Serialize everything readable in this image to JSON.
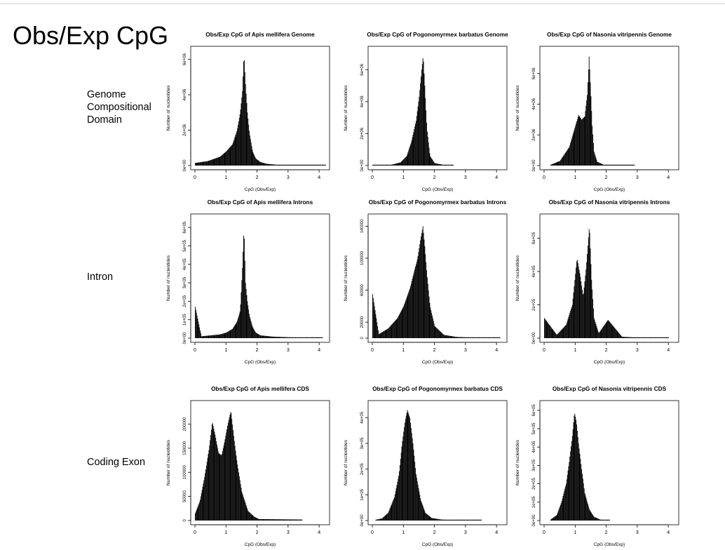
{
  "slide": {
    "title": "Obs/Exp CpG"
  },
  "rows": [
    {
      "label": "Genome\nCompositional\nDomain"
    },
    {
      "label": "Intron"
    },
    {
      "label": "Coding Exon"
    }
  ],
  "colors": {
    "bar": "#000000",
    "axis": "#000000",
    "frame": "#000000",
    "background": "#ffffff"
  },
  "chart_data": [
    {
      "type": "bar",
      "title": "Obs/Exp CpG of Apis mellifera Genome",
      "xlabel": "CpG (Obs/Exp)",
      "ylabel": "Number of nucleotides",
      "xlim": [
        0,
        4.2
      ],
      "ylim": [
        0,
        6500000
      ],
      "xticks": [
        0,
        1,
        2,
        3,
        4
      ],
      "xtick_labels": [
        "0",
        "1",
        "2",
        "3",
        "4"
      ],
      "yticks": [
        0,
        2000000,
        4000000,
        6000000
      ],
      "ytick_labels": [
        "0e+00",
        "2e+06",
        "4e+06",
        "6e+06"
      ],
      "series": [
        {
          "x": [
            0,
            0.4,
            0.8,
            1.0,
            1.2,
            1.35,
            1.45,
            1.52,
            1.57,
            1.62,
            1.68,
            1.75,
            1.85,
            1.95,
            2.1,
            2.3,
            2.6,
            3.0,
            3.5,
            4.2
          ],
          "values": [
            150000,
            250000,
            500000,
            800000,
            1200000,
            2000000,
            3000000,
            4200000,
            6300000,
            4600000,
            3000000,
            1800000,
            800000,
            400000,
            200000,
            100000,
            50000,
            30000,
            20000,
            15000
          ]
        }
      ]
    },
    {
      "type": "bar",
      "title": "Obs/Exp CpG of Pogonomyrmex barbatus Genome",
      "xlabel": "CpG (Obs/Exp)",
      "ylabel": "Number of nucleotides",
      "xlim": [
        0,
        4.2
      ],
      "ylim": [
        0,
        7200000
      ],
      "xticks": [
        0,
        1,
        2,
        3,
        4
      ],
      "xtick_labels": [
        "0",
        "1",
        "2",
        "3",
        "4"
      ],
      "yticks": [
        0,
        2000000,
        4000000,
        6000000
      ],
      "ytick_labels": [
        "0e+00",
        "2e+06",
        "4e+06",
        "6e+06"
      ],
      "series": [
        {
          "x": [
            0,
            0.6,
            0.9,
            1.1,
            1.25,
            1.4,
            1.5,
            1.58,
            1.63,
            1.68,
            1.75,
            1.85,
            2.0,
            2.3,
            2.6
          ],
          "values": [
            30000,
            50000,
            200000,
            600000,
            1500000,
            2800000,
            4300000,
            6000000,
            6900000,
            5000000,
            2300000,
            600000,
            150000,
            40000,
            10000
          ]
        }
      ]
    },
    {
      "type": "bar",
      "title": "Obs/Exp CpG of Nasonia vitripennis Genome",
      "xlabel": "CpG (Obs/Exp)",
      "ylabel": "Number of nucleotides",
      "xlim": [
        0,
        4.2
      ],
      "ylim": [
        0,
        7500000
      ],
      "xticks": [
        0,
        1,
        2,
        3,
        4
      ],
      "xtick_labels": [
        "0",
        "1",
        "2",
        "3",
        "4"
      ],
      "yticks": [
        0,
        2000000,
        4000000,
        6000000
      ],
      "ytick_labels": [
        "0e+00",
        "2e+06",
        "4e+06",
        "6e+06"
      ],
      "series": [
        {
          "x": [
            0.2,
            0.5,
            0.8,
            1.0,
            1.1,
            1.2,
            1.3,
            1.38,
            1.44,
            1.49,
            1.54,
            1.6,
            1.7,
            1.9,
            2.2,
            2.5,
            2.9
          ],
          "values": [
            50000,
            300000,
            1200000,
            2600000,
            3300000,
            3000000,
            3200000,
            4600000,
            7100000,
            5000000,
            2600000,
            900000,
            250000,
            60000,
            20000,
            10000,
            5000
          ]
        }
      ]
    },
    {
      "type": "bar",
      "title": "Obs/Exp CpG of Apis mellifera Introns",
      "xlabel": "CpG (Obs/Exp)",
      "ylabel": "Number of nucleotides",
      "xlim": [
        0,
        4.2
      ],
      "ylim": [
        0,
        650000
      ],
      "xticks": [
        0,
        1,
        2,
        3,
        4
      ],
      "xtick_labels": [
        "0",
        "1",
        "2",
        "3",
        "4"
      ],
      "yticks": [
        0,
        100000,
        200000,
        300000,
        400000,
        500000,
        600000
      ],
      "ytick_labels": [
        "0e+00",
        "1e+05",
        "2e+05",
        "3e+05",
        "4e+05",
        "5e+05",
        "6e+05"
      ],
      "series": [
        {
          "x": [
            0,
            0.2,
            0.5,
            0.8,
            1.0,
            1.2,
            1.35,
            1.45,
            1.52,
            1.57,
            1.62,
            1.68,
            1.75,
            1.85,
            1.95,
            2.1,
            2.5,
            3.0,
            3.5,
            4.1
          ],
          "values": [
            170000,
            10000,
            15000,
            20000,
            30000,
            50000,
            90000,
            150000,
            380000,
            600000,
            300000,
            200000,
            120000,
            60000,
            30000,
            15000,
            8000,
            5000,
            3000,
            2000
          ]
        }
      ]
    },
    {
      "type": "bar",
      "title": "Obs/Exp CpG of Pogonomyrmex barbatus Introns",
      "xlabel": "CpG (Obs/Exp)",
      "ylabel": "Number of nucleotides",
      "xlim": [
        0,
        4.2
      ],
      "ylim": [
        0,
        150000
      ],
      "xticks": [
        0,
        1,
        2,
        3,
        4
      ],
      "xtick_labels": [
        "0",
        "1",
        "2",
        "3",
        "4"
      ],
      "yticks": [
        0,
        20000,
        60000,
        100000,
        140000
      ],
      "ytick_labels": [
        "0",
        "20000",
        "60000",
        "100000",
        "140000"
      ],
      "series": [
        {
          "x": [
            0,
            0.2,
            0.5,
            0.8,
            1.0,
            1.2,
            1.35,
            1.45,
            1.55,
            1.62,
            1.68,
            1.75,
            1.85,
            2.0,
            2.3,
            2.7,
            3.2,
            3.8,
            4.1
          ],
          "values": [
            55000,
            5000,
            12000,
            25000,
            40000,
            62000,
            85000,
            100000,
            125000,
            140000,
            115000,
            80000,
            40000,
            15000,
            4000,
            1500,
            800,
            500,
            300
          ]
        }
      ]
    },
    {
      "type": "bar",
      "title": "Obs/Exp CpG of Nasonia vitripennis Introns",
      "xlabel": "CpG (Obs/Exp)",
      "ylabel": "Number of nucleotides",
      "xlim": [
        0,
        4.2
      ],
      "ylim": [
        0,
        720000
      ],
      "xticks": [
        0,
        1,
        2,
        3,
        4
      ],
      "xtick_labels": [
        "0",
        "1",
        "2",
        "3",
        "4"
      ],
      "yticks": [
        0,
        200000,
        400000,
        600000
      ],
      "ytick_labels": [
        "0e+00",
        "2e+05",
        "4e+05",
        "6e+05"
      ],
      "series": [
        {
          "x": [
            0,
            0.4,
            0.7,
            0.9,
            1.05,
            1.15,
            1.25,
            1.35,
            1.45,
            1.52,
            1.6,
            1.75,
            2.05,
            2.5,
            3.0,
            3.6,
            4.0
          ],
          "values": [
            120000,
            20000,
            80000,
            200000,
            480000,
            380000,
            250000,
            430000,
            680000,
            350000,
            120000,
            30000,
            110000,
            8000,
            4000,
            2000,
            1000
          ]
        }
      ]
    },
    {
      "type": "bar",
      "title": "Obs/Exp CpG of Apis mellifera CDS",
      "xlabel": "CpG (Obs/Exp)",
      "ylabel": "Number of nucleotides",
      "xlim": [
        0,
        4.2
      ],
      "ylim": [
        0,
        240000
      ],
      "xticks": [
        0,
        1,
        2,
        3,
        4
      ],
      "xtick_labels": [
        "0",
        "1",
        "2",
        "3",
        "4"
      ],
      "yticks": [
        0,
        50000,
        100000,
        150000,
        200000
      ],
      "ytick_labels": [
        "0",
        "50000",
        "100000",
        "150000",
        "200000"
      ],
      "series": [
        {
          "x": [
            0,
            0.15,
            0.3,
            0.45,
            0.55,
            0.65,
            0.75,
            0.85,
            0.95,
            1.05,
            1.15,
            1.25,
            1.35,
            1.5,
            1.7,
            1.9,
            2.05,
            3.45
          ],
          "values": [
            15000,
            40000,
            90000,
            150000,
            205000,
            175000,
            140000,
            135000,
            165000,
            200000,
            228000,
            170000,
            120000,
            60000,
            20000,
            8000,
            3000,
            2000
          ]
        }
      ]
    },
    {
      "type": "bar",
      "title": "Obs/Exp CpG of Pogonomyrmex barbatus CDS",
      "xlabel": "CpG (Obs/Exp)",
      "ylabel": "Number of nucleotides",
      "xlim": [
        0,
        4.2
      ],
      "ylim": [
        0,
        450000
      ],
      "xticks": [
        0,
        1,
        2,
        3,
        4
      ],
      "xtick_labels": [
        "0",
        "1",
        "2",
        "3",
        "4"
      ],
      "yticks": [
        0,
        100000,
        200000,
        300000,
        400000
      ],
      "ytick_labels": [
        "0e+00",
        "1e+05",
        "2e+05",
        "3e+05",
        "4e+05"
      ],
      "series": [
        {
          "x": [
            0.1,
            0.3,
            0.5,
            0.7,
            0.85,
            0.95,
            1.05,
            1.12,
            1.2,
            1.3,
            1.4,
            1.55,
            1.7,
            1.9,
            2.2,
            2.7,
            3.3,
            3.5
          ],
          "values": [
            3000,
            8000,
            30000,
            90000,
            180000,
            300000,
            390000,
            430000,
            400000,
            300000,
            180000,
            80000,
            30000,
            10000,
            4000,
            1500,
            500,
            300
          ]
        }
      ]
    },
    {
      "type": "bar",
      "title": "Obs/Exp CpG of Nasonia vitripennis CDS",
      "xlabel": "CpG (Obs/Exp)",
      "ylabel": "Number of nucleotides",
      "xlim": [
        0,
        4.2
      ],
      "ylim": [
        0,
        630000
      ],
      "xticks": [
        0,
        1,
        2,
        3,
        4
      ],
      "xtick_labels": [
        "0",
        "1",
        "2",
        "3",
        "4"
      ],
      "yticks": [
        0,
        100000,
        200000,
        300000,
        400000,
        500000,
        600000
      ],
      "ytick_labels": [
        "0e+00",
        "1e+05",
        "2e+05",
        "3e+05",
        "4e+05",
        "5e+05",
        "6e+05"
      ],
      "series": [
        {
          "x": [
            0.2,
            0.4,
            0.55,
            0.7,
            0.8,
            0.9,
            0.97,
            1.03,
            1.1,
            1.2,
            1.3,
            1.45,
            1.6,
            1.8,
            2.1
          ],
          "values": [
            5000,
            30000,
            100000,
            200000,
            320000,
            460000,
            590000,
            540000,
            420000,
            280000,
            150000,
            60000,
            20000,
            5000,
            2000
          ]
        }
      ]
    }
  ]
}
